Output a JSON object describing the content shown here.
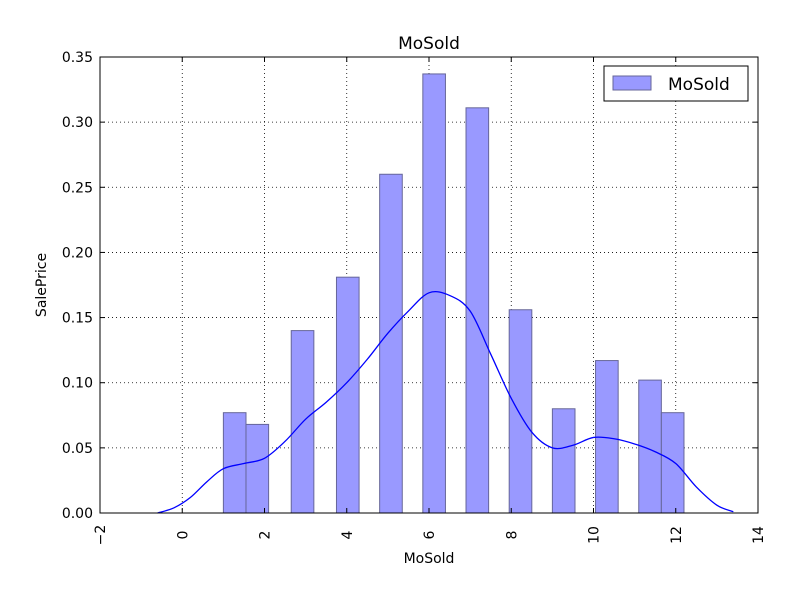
{
  "chart_data": {
    "type": "bar",
    "title": "MoSold",
    "xlabel": "MoSold",
    "ylabel": "SalePrice",
    "xlim": [
      -2,
      14
    ],
    "ylim": [
      0,
      0.35
    ],
    "x_ticks": [
      -2,
      0,
      2,
      4,
      6,
      8,
      10,
      12,
      14
    ],
    "y_ticks": [
      0.0,
      0.05,
      0.1,
      0.15,
      0.2,
      0.25,
      0.3,
      0.35
    ],
    "grid": true,
    "legend": {
      "position": "top-right",
      "entries": [
        "MoSold"
      ]
    },
    "series": [
      {
        "name": "MoSold",
        "kind": "histogram",
        "bins": [
          {
            "x0": 1.0,
            "x1": 1.55,
            "value": 0.077
          },
          {
            "x0": 1.55,
            "x1": 2.1,
            "value": 0.068
          },
          {
            "x0": 2.65,
            "x1": 3.2,
            "value": 0.14
          },
          {
            "x0": 3.75,
            "x1": 4.3,
            "value": 0.181
          },
          {
            "x0": 4.8,
            "x1": 5.35,
            "value": 0.26
          },
          {
            "x0": 5.85,
            "x1": 6.4,
            "value": 0.337
          },
          {
            "x0": 6.9,
            "x1": 7.45,
            "value": 0.311
          },
          {
            "x0": 7.95,
            "x1": 8.5,
            "value": 0.156
          },
          {
            "x0": 9.0,
            "x1": 9.55,
            "value": 0.08
          },
          {
            "x0": 10.05,
            "x1": 10.6,
            "value": 0.117
          },
          {
            "x0": 11.1,
            "x1": 11.65,
            "value": 0.102
          },
          {
            "x0": 11.65,
            "x1": 12.2,
            "value": 0.077
          }
        ],
        "color": "#9999ff",
        "edge_color": "#666699"
      },
      {
        "name": "MoSold",
        "kind": "kde",
        "x": [
          -0.6,
          -0.2,
          0.2,
          0.6,
          1.0,
          1.5,
          2.0,
          2.5,
          3.0,
          3.5,
          4.0,
          4.5,
          5.0,
          5.5,
          6.0,
          6.5,
          7.0,
          7.5,
          8.0,
          8.5,
          9.0,
          9.5,
          10.0,
          10.5,
          11.0,
          11.5,
          12.0,
          12.5,
          13.0,
          13.4
        ],
        "y": [
          0.0,
          0.004,
          0.012,
          0.024,
          0.034,
          0.038,
          0.042,
          0.055,
          0.072,
          0.085,
          0.1,
          0.118,
          0.138,
          0.155,
          0.169,
          0.167,
          0.155,
          0.122,
          0.088,
          0.062,
          0.05,
          0.052,
          0.058,
          0.057,
          0.053,
          0.047,
          0.038,
          0.02,
          0.006,
          0.001
        ],
        "color": "#0000ff"
      }
    ]
  }
}
